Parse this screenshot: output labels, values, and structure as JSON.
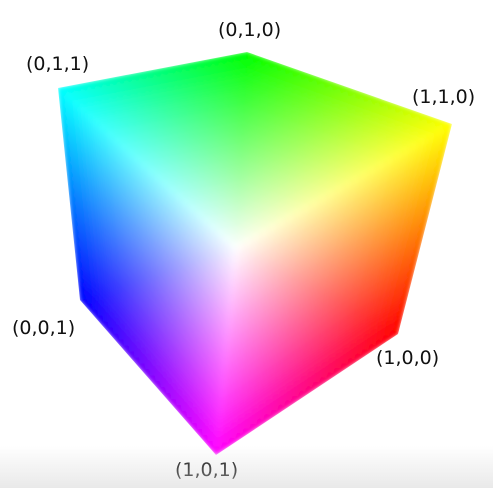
{
  "diagram": {
    "labels": {
      "top": "(0,1,0)",
      "upper_left": "(0,1,1)",
      "upper_right": "(1,1,0)",
      "left": "(0,0,1)",
      "right": "(1,0,0)",
      "bottom": "(1,0,1)"
    },
    "colors": {
      "white": "#ffffff",
      "green": "#00ff00",
      "cyan": "#00ffff",
      "yellow": "#ffff00",
      "blue": "#0000ff",
      "red": "#ff0000",
      "magenta": "#ff00ff"
    }
  }
}
